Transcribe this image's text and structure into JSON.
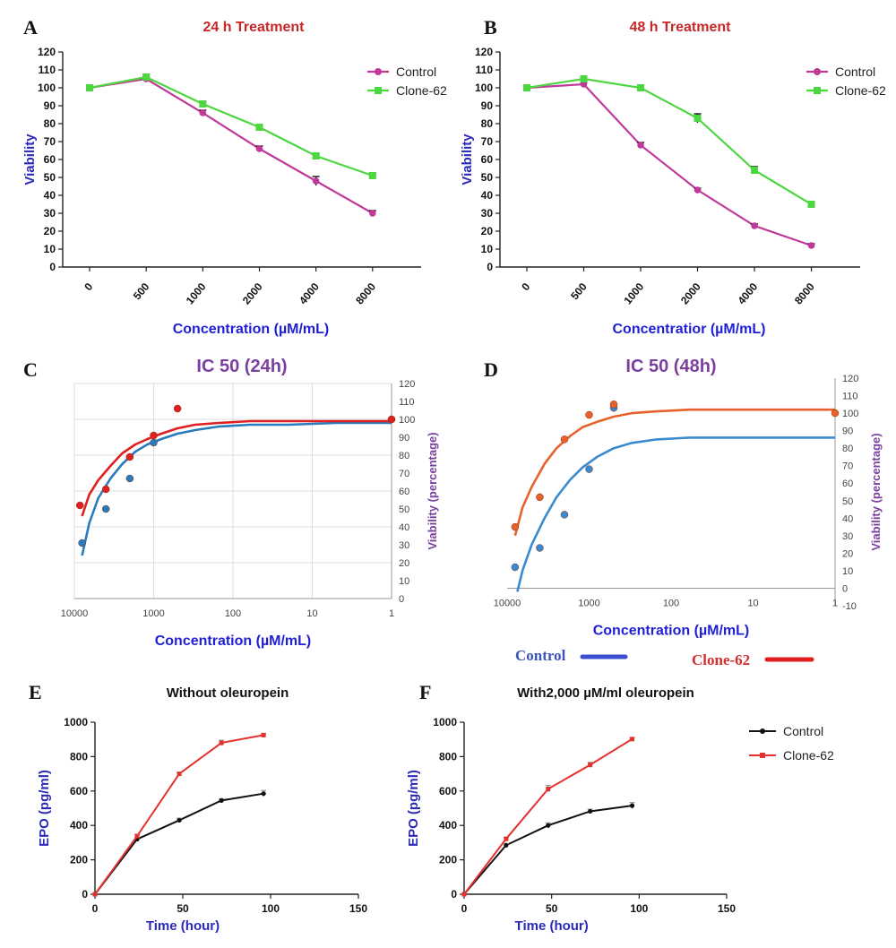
{
  "chart_data": [
    {
      "panel": "A",
      "type": "line",
      "title": "24 h Treatment",
      "xlabel": "Concentration (µM/mL)",
      "ylabel": "Viability",
      "categories": [
        "0",
        "500",
        "1000",
        "2000",
        "4000",
        "8000"
      ],
      "yticks": [
        0,
        10,
        20,
        30,
        40,
        50,
        60,
        70,
        80,
        90,
        100,
        110,
        120
      ],
      "ylim": [
        0,
        120
      ],
      "legend": "top-right",
      "series": [
        {
          "name": "Control",
          "color": "#c0399a",
          "marker": "circle",
          "values": [
            100,
            105,
            86,
            66,
            48,
            30
          ],
          "errors": [
            1,
            1,
            1.5,
            1.5,
            2.5,
            1.5
          ]
        },
        {
          "name": "Clone-62",
          "color": "#4cd640",
          "marker": "square",
          "values": [
            100,
            106,
            91,
            78,
            62,
            51
          ],
          "errors": [
            1,
            1.5,
            1.5,
            1.5,
            1.5,
            1.5
          ]
        }
      ]
    },
    {
      "panel": "B",
      "type": "line",
      "title": "48 h Treatment",
      "xlabel": "Concentratior (µM/mL)",
      "ylabel": "Viability",
      "categories": [
        "0",
        "500",
        "1000",
        "2000",
        "4000",
        "8000"
      ],
      "yticks": [
        0,
        10,
        20,
        30,
        40,
        50,
        60,
        70,
        80,
        90,
        100,
        110,
        120
      ],
      "ylim": [
        0,
        120
      ],
      "legend": "top-right",
      "series": [
        {
          "name": "Control",
          "color": "#c0399a",
          "marker": "circle",
          "values": [
            100,
            102,
            68,
            43,
            23,
            12
          ],
          "errors": [
            1,
            1,
            1.5,
            1,
            1,
            1
          ]
        },
        {
          "name": "Clone-62",
          "color": "#4cd640",
          "marker": "square",
          "values": [
            100,
            105,
            100,
            83,
            54,
            35
          ],
          "errors": [
            1,
            1,
            1,
            2.5,
            2,
            1.5
          ]
        }
      ]
    },
    {
      "panel": "C",
      "type": "scatter",
      "title": "IC 50 (24h)",
      "xlabel": "Concentration (µM/mL)",
      "ylabel": "Viability (percentage)",
      "xscale": "log-reversed",
      "xticks": [
        "10000",
        "1000",
        "100",
        "10",
        "1"
      ],
      "yticks": [
        0,
        10,
        20,
        30,
        40,
        50,
        60,
        70,
        80,
        90,
        100,
        110,
        120
      ],
      "ylim": [
        0,
        120
      ],
      "grid": true,
      "series": [
        {
          "name": "Control",
          "color": "#2a7bbd",
          "points": [
            [
              8000,
              31
            ],
            [
              4000,
              50
            ],
            [
              2000,
              67
            ],
            [
              1000,
              87
            ],
            [
              1,
              100
            ]
          ],
          "fit": [
            [
              8000,
              24
            ],
            [
              6500,
              42
            ],
            [
              5000,
              56
            ],
            [
              3500,
              67
            ],
            [
              2500,
              75
            ],
            [
              1700,
              82
            ],
            [
              1200,
              86
            ],
            [
              800,
              89
            ],
            [
              500,
              92
            ],
            [
              300,
              94
            ],
            [
              150,
              96
            ],
            [
              60,
              97
            ],
            [
              20,
              97
            ],
            [
              5,
              98
            ],
            [
              1,
              98
            ]
          ]
        },
        {
          "name": "Clone-62",
          "color": "#e02020",
          "points": [
            [
              8500,
              52
            ],
            [
              4000,
              61
            ],
            [
              2000,
              79
            ],
            [
              1000,
              91
            ],
            [
              500,
              106
            ],
            [
              1,
              100
            ]
          ],
          "fit": [
            [
              8000,
              46
            ],
            [
              6500,
              58
            ],
            [
              5000,
              66
            ],
            [
              3500,
              74
            ],
            [
              2500,
              81
            ],
            [
              1700,
              86
            ],
            [
              1200,
              89
            ],
            [
              800,
              92
            ],
            [
              500,
              95
            ],
            [
              300,
              97
            ],
            [
              150,
              98
            ],
            [
              60,
              99
            ],
            [
              20,
              99
            ],
            [
              5,
              99
            ],
            [
              1,
              99
            ]
          ]
        }
      ]
    },
    {
      "panel": "D",
      "type": "scatter",
      "title": "IC 50 (48h)",
      "xlabel": "Concentration (µM/mL)",
      "ylabel": "Viability (percentage)",
      "xscale": "log-reversed",
      "xticks": [
        "10000",
        "1000",
        "100",
        "10",
        "1"
      ],
      "yticks": [
        -10,
        0,
        10,
        20,
        30,
        40,
        50,
        60,
        70,
        80,
        90,
        100,
        110,
        120
      ],
      "ylim": [
        -10,
        120
      ],
      "grid": false,
      "series": [
        {
          "name": "Control",
          "color": "#3a8ad0",
          "points": [
            [
              8000,
              12
            ],
            [
              4000,
              23
            ],
            [
              2000,
              42
            ],
            [
              1000,
              68
            ],
            [
              500,
              103
            ]
          ],
          "fit": [
            [
              7500,
              -2
            ],
            [
              6500,
              10
            ],
            [
              5000,
              25
            ],
            [
              3500,
              40
            ],
            [
              2500,
              52
            ],
            [
              1700,
              62
            ],
            [
              1200,
              69
            ],
            [
              800,
              75
            ],
            [
              500,
              80
            ],
            [
              300,
              83
            ],
            [
              150,
              85
            ],
            [
              60,
              86
            ],
            [
              20,
              86
            ],
            [
              5,
              86
            ],
            [
              1,
              86
            ]
          ]
        },
        {
          "name": "Clone-62",
          "color": "#e8602a",
          "points": [
            [
              8000,
              35
            ],
            [
              4000,
              52
            ],
            [
              2000,
              85
            ],
            [
              1000,
              99
            ],
            [
              500,
              105
            ],
            [
              1,
              100
            ]
          ],
          "fit": [
            [
              8000,
              30
            ],
            [
              6500,
              46
            ],
            [
              5000,
              58
            ],
            [
              3500,
              71
            ],
            [
              2500,
              80
            ],
            [
              1700,
              87
            ],
            [
              1200,
              92
            ],
            [
              800,
              95
            ],
            [
              500,
              98
            ],
            [
              300,
              100
            ],
            [
              150,
              101
            ],
            [
              60,
              102
            ],
            [
              20,
              102
            ],
            [
              5,
              102
            ],
            [
              1,
              102
            ]
          ]
        }
      ],
      "legend": {
        "control_label": "Control",
        "clone_label": "Clone-62"
      }
    },
    {
      "panel": "E",
      "type": "line",
      "title": "Without oleuropein",
      "xlabel": "Time (hour)",
      "ylabel": "EPO (pg/ml)",
      "xticks": [
        0,
        50,
        100,
        150
      ],
      "yticks": [
        0,
        200,
        400,
        600,
        800,
        1000
      ],
      "xlim": [
        0,
        150
      ],
      "ylim": [
        0,
        1000
      ],
      "series": [
        {
          "name": "Control",
          "color": "#111111",
          "x": [
            0,
            24,
            48,
            72,
            96
          ],
          "values": [
            0,
            320,
            430,
            545,
            585
          ],
          "errors": [
            0,
            10,
            12,
            10,
            18
          ]
        },
        {
          "name": "Clone-62",
          "color": "#e53030",
          "x": [
            0,
            24,
            48,
            72,
            96
          ],
          "values": [
            0,
            338,
            700,
            880,
            925
          ],
          "errors": [
            0,
            10,
            8,
            15,
            10
          ]
        }
      ]
    },
    {
      "panel": "F",
      "type": "line",
      "title": "With2,000 µM/ml oleuropein",
      "xlabel": "Time (hour)",
      "ylabel": "EPO (pg/ml)",
      "xticks": [
        0,
        50,
        100,
        150
      ],
      "yticks": [
        0,
        200,
        400,
        600,
        800,
        1000
      ],
      "xlim": [
        0,
        150
      ],
      "ylim": [
        0,
        1000
      ],
      "legend": "right",
      "series": [
        {
          "name": "Control",
          "color": "#111111",
          "x": [
            0,
            24,
            48,
            72,
            96
          ],
          "values": [
            0,
            285,
            400,
            482,
            515
          ],
          "errors": [
            0,
            8,
            15,
            12,
            18
          ]
        },
        {
          "name": "Clone-62",
          "color": "#e53030",
          "x": [
            0,
            24,
            48,
            72,
            96
          ],
          "values": [
            0,
            322,
            612,
            752,
            902
          ],
          "errors": [
            0,
            8,
            20,
            15,
            8
          ]
        }
      ]
    }
  ],
  "panel_letters": {
    "A": "A",
    "B": "B",
    "C": "C",
    "D": "D",
    "E": "E",
    "F": "F"
  }
}
